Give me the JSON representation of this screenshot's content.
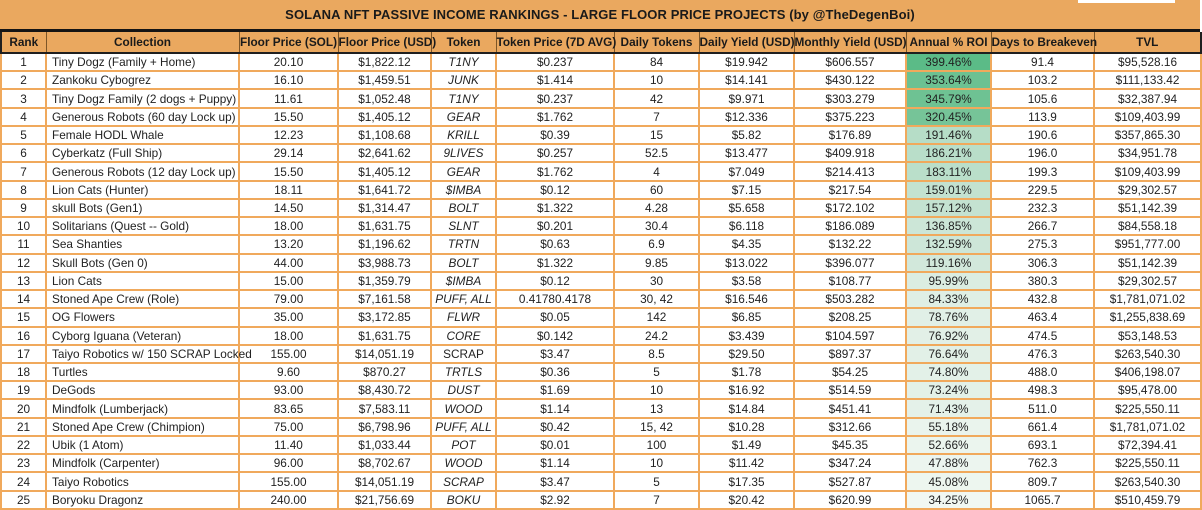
{
  "title": "SOLANA NFT PASSIVE INCOME RANKINGS - LARGE FLOOR PRICE PROJECTS (by @TheDegenBoi)",
  "colors": {
    "banner_bg": "#EAA85F",
    "grid_line": "#F0A95C",
    "separator": "#141414",
    "cell_bg": "#FFFFFF",
    "roi_scale_max": "#5BBB87",
    "roi_scale_min": "#F1F8F2"
  },
  "chart_data": {
    "type": "table",
    "title": "SOLANA NFT PASSIVE INCOME RANKINGS - LARGE FLOOR PRICE PROJECTS (by @TheDegenBoi)",
    "columns": [
      "Rank",
      "Collection",
      "Floor Price (SOL)",
      "Floor Price (USD)",
      "Token",
      "Token Price (7D AVG)",
      "Daily Tokens",
      "Daily Yield (USD)",
      "Monthly Yield (USD)",
      "Annual % ROI",
      "Days to Breakeven",
      "TVL"
    ],
    "rows": [
      {
        "rank": "1",
        "collection": "Tiny Dogz (Family + Home)",
        "floor_sol": "20.10",
        "floor_usd": "$1,822.12",
        "token": "T1NY",
        "token_italic": true,
        "token_price": "$0.237",
        "daily_tokens": "84",
        "daily_yield": "$19.942",
        "monthly_yield": "$606.557",
        "roi": "399.46%",
        "roi_color": "#5BBB87",
        "breakeven": "91.4",
        "tvl": "$95,528.16"
      },
      {
        "rank": "2",
        "collection": "Zankoku Cybogrez",
        "floor_sol": "16.10",
        "floor_usd": "$1,459.51",
        "token": "JUNK",
        "token_italic": true,
        "token_price": "$1.414",
        "daily_tokens": "10",
        "daily_yield": "$14.141",
        "monthly_yield": "$430.122",
        "roi": "353.64%",
        "roi_color": "#6CC192",
        "breakeven": "103.2",
        "tvl": "$111,133.42"
      },
      {
        "rank": "3",
        "collection": "Tiny Dogz Family (2 dogs + Puppy)",
        "floor_sol": "11.61",
        "floor_usd": "$1,052.48",
        "token": "T1NY",
        "token_italic": true,
        "token_price": "$0.237",
        "daily_tokens": "42",
        "daily_yield": "$9.971",
        "monthly_yield": "$303.279",
        "roi": "345.79%",
        "roi_color": "#6EC293",
        "breakeven": "105.6",
        "tvl": "$32,387.94"
      },
      {
        "rank": "4",
        "collection": "Generous Robots (60 day Lock up)",
        "floor_sol": "15.50",
        "floor_usd": "$1,405.12",
        "token": "GEAR",
        "token_italic": true,
        "token_price": "$1.762",
        "daily_tokens": "7",
        "daily_yield": "$12.336",
        "monthly_yield": "$375.223",
        "roi": "320.45%",
        "roi_color": "#76C498",
        "breakeven": "113.9",
        "tvl": "$109,403.99"
      },
      {
        "rank": "5",
        "collection": "Female HODL Whale",
        "floor_sol": "12.23",
        "floor_usd": "$1,108.68",
        "token": "KRILL",
        "token_italic": true,
        "token_price": "$0.39",
        "daily_tokens": "15",
        "daily_yield": "$5.82",
        "monthly_yield": "$176.89",
        "roi": "191.46%",
        "roi_color": "#B6DDC7",
        "breakeven": "190.6",
        "tvl": "$357,865.30"
      },
      {
        "rank": "6",
        "collection": "Cyberkatz (Full Ship)",
        "floor_sol": "29.14",
        "floor_usd": "$2,641.62",
        "token": "9LIVES",
        "token_italic": true,
        "token_price": "$0.257",
        "daily_tokens": "52.5",
        "daily_yield": "$13.477",
        "monthly_yield": "$409.918",
        "roi": "186.21%",
        "roi_color": "#B9DEC9",
        "breakeven": "196.0",
        "tvl": "$34,951.78"
      },
      {
        "rank": "7",
        "collection": "Generous Robots (12 day Lock up)",
        "floor_sol": "15.50",
        "floor_usd": "$1,405.12",
        "token": "GEAR",
        "token_italic": true,
        "token_price": "$1.762",
        "daily_tokens": "4",
        "daily_yield": "$7.049",
        "monthly_yield": "$214.413",
        "roi": "183.11%",
        "roi_color": "#BADFCA",
        "breakeven": "199.3",
        "tvl": "$109,403.99"
      },
      {
        "rank": "8",
        "collection": "Lion Cats (Hunter)",
        "floor_sol": "18.11",
        "floor_usd": "$1,641.72",
        "token": "$IMBA",
        "token_italic": true,
        "token_price": "$0.12",
        "daily_tokens": "60",
        "daily_yield": "$7.15",
        "monthly_yield": "$217.54",
        "roi": "159.01%",
        "roi_color": "#C3E2D0",
        "breakeven": "229.5",
        "tvl": "$29,302.57"
      },
      {
        "rank": "9",
        "collection": "skull Bots (Gen1)",
        "floor_sol": "14.50",
        "floor_usd": "$1,314.47",
        "token": "BOLT",
        "token_italic": true,
        "token_price": "$1.322",
        "daily_tokens": "4.28",
        "daily_yield": "$5.658",
        "monthly_yield": "$172.102",
        "roi": "157.12%",
        "roi_color": "#C4E2D1",
        "breakeven": "232.3",
        "tvl": "$51,142.39"
      },
      {
        "rank": "10",
        "collection": "Solitarians (Quest -- Gold)",
        "floor_sol": "18.00",
        "floor_usd": "$1,631.75",
        "token": "SLNT",
        "token_italic": true,
        "token_price": "$0.201",
        "daily_tokens": "30.4",
        "daily_yield": "$6.118",
        "monthly_yield": "$186.089",
        "roi": "136.85%",
        "roi_color": "#CCE6D7",
        "breakeven": "266.7",
        "tvl": "$84,558.18"
      },
      {
        "rank": "11",
        "collection": "Sea Shanties",
        "floor_sol": "13.20",
        "floor_usd": "$1,196.62",
        "token": "TRTN",
        "token_italic": true,
        "token_price": "$0.63",
        "daily_tokens": "6.9",
        "daily_yield": "$4.35",
        "monthly_yield": "$132.22",
        "roi": "132.59%",
        "roi_color": "#CDE6D8",
        "breakeven": "275.3",
        "tvl": "$951,777.00"
      },
      {
        "rank": "12",
        "collection": "Skull Bots (Gen 0)",
        "floor_sol": "44.00",
        "floor_usd": "$3,988.73",
        "token": "BOLT",
        "token_italic": true,
        "token_price": "$1.322",
        "daily_tokens": "9.85",
        "daily_yield": "$13.022",
        "monthly_yield": "$396.077",
        "roi": "119.16%",
        "roi_color": "#D2E8DB",
        "breakeven": "306.3",
        "tvl": "$51,142.39"
      },
      {
        "rank": "13",
        "collection": "Lion Cats",
        "floor_sol": "15.00",
        "floor_usd": "$1,359.79",
        "token": "$IMBA",
        "token_italic": true,
        "token_price": "$0.12",
        "daily_tokens": "30",
        "daily_yield": "$3.58",
        "monthly_yield": "$108.77",
        "roi": "95.99%",
        "roi_color": "#DBEDE2",
        "breakeven": "380.3",
        "tvl": "$29,302.57"
      },
      {
        "rank": "14",
        "collection": "Stoned Ape Crew (Role)",
        "floor_sol": "79.00",
        "floor_usd": "$7,161.58",
        "token": "PUFF, ALL",
        "token_italic": true,
        "token_price": "0.41780.4178",
        "daily_tokens": "30, 42",
        "daily_yield": "$16.546",
        "monthly_yield": "$503.282",
        "roi": "84.33%",
        "roi_color": "#DFEFE5",
        "breakeven": "432.8",
        "tvl": "$1,781,071.02"
      },
      {
        "rank": "15",
        "collection": "OG Flowers",
        "floor_sol": "35.00",
        "floor_usd": "$3,172.85",
        "token": "FLWR",
        "token_italic": true,
        "token_price": "$0.05",
        "daily_tokens": "142",
        "daily_yield": "$6.85",
        "monthly_yield": "$208.25",
        "roi": "78.76%",
        "roi_color": "#E1F0E7",
        "breakeven": "463.4",
        "tvl": "$1,255,838.69"
      },
      {
        "rank": "16",
        "collection": "Cyborg Iguana (Veteran)",
        "floor_sol": "18.00",
        "floor_usd": "$1,631.75",
        "token": "CORE",
        "token_italic": true,
        "token_price": "$0.142",
        "daily_tokens": "24.2",
        "daily_yield": "$3.439",
        "monthly_yield": "$104.597",
        "roi": "76.92%",
        "roi_color": "#E2F0E7",
        "breakeven": "474.5",
        "tvl": "$53,148.53"
      },
      {
        "rank": "17",
        "collection": "Taiyo Robotics w/ 150 SCRAP Locked",
        "floor_sol": "155.00",
        "floor_usd": "$14,051.19",
        "token": "SCRAP",
        "token_italic": false,
        "token_price": "$3.47",
        "daily_tokens": "8.5",
        "daily_yield": "$29.50",
        "monthly_yield": "$897.37",
        "roi": "76.64%",
        "roi_color": "#E2F0E7",
        "breakeven": "476.3",
        "tvl": "$263,540.30"
      },
      {
        "rank": "18",
        "collection": "Turtles",
        "floor_sol": "9.60",
        "floor_usd": "$870.27",
        "token": "TRTLS",
        "token_italic": true,
        "token_price": "$0.36",
        "daily_tokens": "5",
        "daily_yield": "$1.78",
        "monthly_yield": "$54.25",
        "roi": "74.80%",
        "roi_color": "#E3F1E8",
        "breakeven": "488.0",
        "tvl": "$406,198.07"
      },
      {
        "rank": "19",
        "collection": "DeGods",
        "floor_sol": "93.00",
        "floor_usd": "$8,430.72",
        "token": "DUST",
        "token_italic": true,
        "token_price": "$1.69",
        "daily_tokens": "10",
        "daily_yield": "$16.92",
        "monthly_yield": "$514.59",
        "roi": "73.24%",
        "roi_color": "#E3F1E8",
        "breakeven": "498.3",
        "tvl": "$95,478.00"
      },
      {
        "rank": "20",
        "collection": "Mindfolk (Lumberjack)",
        "floor_sol": "83.65",
        "floor_usd": "$7,583.11",
        "token": "WOOD",
        "token_italic": true,
        "token_price": "$1.14",
        "daily_tokens": "13",
        "daily_yield": "$14.84",
        "monthly_yield": "$451.41",
        "roi": "71.43%",
        "roi_color": "#E4F1E9",
        "breakeven": "511.0",
        "tvl": "$225,550.11"
      },
      {
        "rank": "21",
        "collection": "Stoned Ape Crew (Chimpion)",
        "floor_sol": "75.00",
        "floor_usd": "$6,798.96",
        "token": "PUFF, ALL",
        "token_italic": true,
        "token_price": "$0.42",
        "daily_tokens": "15, 42",
        "daily_yield": "$10.28",
        "monthly_yield": "$312.66",
        "roi": "55.18%",
        "roi_color": "#EAF4ED",
        "breakeven": "661.4",
        "tvl": "$1,781,071.02"
      },
      {
        "rank": "22",
        "collection": "Ubik (1 Atom)",
        "floor_sol": "11.40",
        "floor_usd": "$1,033.44",
        "token": "POT",
        "token_italic": true,
        "token_price": "$0.01",
        "daily_tokens": "100",
        "daily_yield": "$1.49",
        "monthly_yield": "$45.35",
        "roi": "52.66%",
        "roi_color": "#EBF5EE",
        "breakeven": "693.1",
        "tvl": "$72,394.41"
      },
      {
        "rank": "23",
        "collection": "Mindfolk (Carpenter)",
        "floor_sol": "96.00",
        "floor_usd": "$8,702.67",
        "token": "WOOD",
        "token_italic": true,
        "token_price": "$1.14",
        "daily_tokens": "10",
        "daily_yield": "$11.42",
        "monthly_yield": "$347.24",
        "roi": "47.88%",
        "roi_color": "#ECF5EF",
        "breakeven": "762.3",
        "tvl": "$225,550.11"
      },
      {
        "rank": "24",
        "collection": "Taiyo Robotics",
        "floor_sol": "155.00",
        "floor_usd": "$14,051.19",
        "token": "SCRAP",
        "token_italic": true,
        "token_price": "$3.47",
        "daily_tokens": "5",
        "daily_yield": "$17.35",
        "monthly_yield": "$527.87",
        "roi": "45.08%",
        "roi_color": "#EDF6EF",
        "breakeven": "809.7",
        "tvl": "$263,540.30"
      },
      {
        "rank": "25",
        "collection": "Boryoku Dragonz",
        "floor_sol": "240.00",
        "floor_usd": "$21,756.69",
        "token": "BOKU",
        "token_italic": true,
        "token_price": "$2.92",
        "daily_tokens": "7",
        "daily_yield": "$20.42",
        "monthly_yield": "$620.99",
        "roi": "34.25%",
        "roi_color": "#F1F8F2",
        "breakeven": "1065.7",
        "tvl": "$510,459.79"
      }
    ]
  }
}
